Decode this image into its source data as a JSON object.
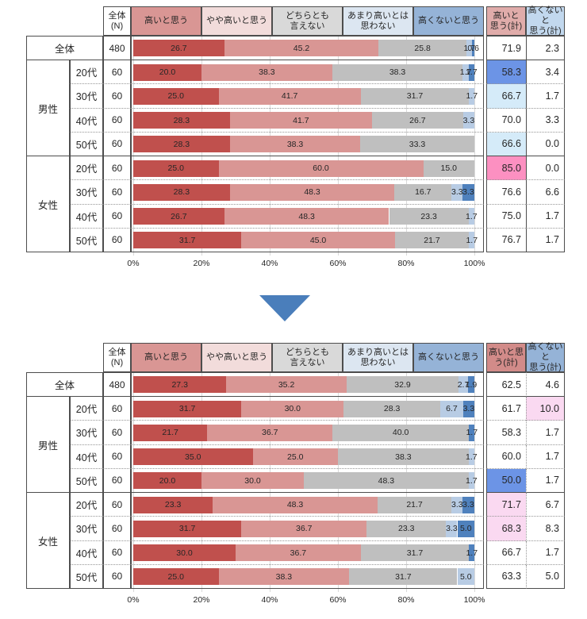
{
  "palette": {
    "series_colors": [
      "#C0504D",
      "#D99694",
      "#BFBFBF",
      "#B8CCE4",
      "#4F81BD"
    ],
    "header_colors": [
      "#D99694",
      "#F2DCDB",
      "#D9D9D9",
      "#DCE6F1",
      "#95B3D7"
    ],
    "highlight": {
      "blue": "#6C94E6",
      "lightblue": "#D5EBF9",
      "pink": "#FC90C1",
      "lightpink": "#FAD9F1"
    },
    "grid_color": "#D9D9D9",
    "border_solid": "#4D4D4D",
    "border_dotted": "#969696",
    "arrow_color": "#4A7EBB"
  },
  "arrow_icon": "down-triangle",
  "chart_data": [
    {
      "type": "bar",
      "orientation": "horizontal-stacked",
      "position": "top",
      "xlim": [
        0,
        100
      ],
      "grid": true,
      "x_ticks": [
        "0%",
        "20%",
        "40%",
        "60%",
        "80%",
        "100%"
      ],
      "n_header_lines": [
        "全体",
        "(N)"
      ],
      "series_names": [
        "高いと思う",
        "やや高いと思う",
        "どちらとも言えない",
        "あまり高いとは思わない",
        "高くないと思う"
      ],
      "series_header_lines": [
        [
          "高いと思う"
        ],
        [
          "やや高いと思う"
        ],
        [
          "どちらとも",
          "言えない"
        ],
        [
          "あまり高いとは",
          "思わない"
        ],
        [
          "高くないと思う"
        ]
      ],
      "summary_header_lines": [
        [
          "高いと",
          "思う(計)"
        ],
        [
          "高くないと",
          "思う(計)"
        ]
      ],
      "summary_header_colors": [
        "#E0ACAA",
        "#C2D8EE"
      ],
      "summary_divider": "solid",
      "groups": [
        {
          "label": "全体",
          "rows": [
            {
              "age": null,
              "n": "480",
              "values": [
                26.7,
                45.2,
                25.8,
                1.7,
                0.6
              ],
              "high_total": "71.9",
              "high_hl": null,
              "low_total": "2.3",
              "low_hl": null
            }
          ]
        },
        {
          "label": "男性",
          "rows": [
            {
              "age": "20代",
              "n": "60",
              "values": [
                20.0,
                38.3,
                38.3,
                1.7,
                1.7
              ],
              "high_total": "58.3",
              "high_hl": "blue",
              "low_total": "3.4",
              "low_hl": null
            },
            {
              "age": "30代",
              "n": "60",
              "values": [
                25.0,
                41.7,
                31.7,
                1.7,
                0.0
              ],
              "high_total": "66.7",
              "high_hl": "lightblue",
              "low_total": "1.7",
              "low_hl": null
            },
            {
              "age": "40代",
              "n": "60",
              "values": [
                28.3,
                41.7,
                26.7,
                3.3,
                0.0
              ],
              "high_total": "70.0",
              "high_hl": null,
              "low_total": "3.3",
              "low_hl": null
            },
            {
              "age": "50代",
              "n": "60",
              "values": [
                28.3,
                38.3,
                33.3,
                0.0,
                0.0
              ],
              "high_total": "66.6",
              "high_hl": "lightblue",
              "low_total": "0.0",
              "low_hl": null
            }
          ]
        },
        {
          "label": "女性",
          "rows": [
            {
              "age": "20代",
              "n": "60",
              "values": [
                25.0,
                60.0,
                15.0,
                0.0,
                0.0
              ],
              "high_total": "85.0",
              "high_hl": "pink",
              "low_total": "0.0",
              "low_hl": null
            },
            {
              "age": "30代",
              "n": "60",
              "values": [
                28.3,
                48.3,
                16.7,
                3.3,
                3.3
              ],
              "high_total": "76.6",
              "high_hl": null,
              "low_total": "6.6",
              "low_hl": null
            },
            {
              "age": "40代",
              "n": "60",
              "values": [
                26.7,
                48.3,
                23.3,
                1.7,
                0.0
              ],
              "high_total": "75.0",
              "high_hl": null,
              "low_total": "1.7",
              "low_hl": null
            },
            {
              "age": "50代",
              "n": "60",
              "values": [
                31.7,
                45.0,
                21.7,
                1.7,
                0.0
              ],
              "high_total": "76.7",
              "high_hl": null,
              "low_total": "1.7",
              "low_hl": null
            }
          ]
        }
      ]
    },
    {
      "type": "bar",
      "orientation": "horizontal-stacked",
      "position": "bottom",
      "xlim": [
        0,
        100
      ],
      "grid": true,
      "x_ticks": [
        "0%",
        "20%",
        "40%",
        "60%",
        "80%",
        "100%"
      ],
      "n_header_lines": [
        "全体",
        "(N)"
      ],
      "series_names": [
        "高いと思う",
        "やや高いと思う",
        "どちらとも言えない",
        "あまり高いとは思わない",
        "高くないと思う"
      ],
      "series_header_lines": [
        [
          "高いと思う"
        ],
        [
          "やや高いと思う"
        ],
        [
          "どちらとも",
          "言えない"
        ],
        [
          "あまり高いとは",
          "思わない"
        ],
        [
          "高くないと思う"
        ]
      ],
      "summary_header_lines": [
        [
          "高いと思",
          "う(計)"
        ],
        [
          "高くないと",
          "思う(計)"
        ]
      ],
      "summary_header_colors": [
        "#D28B89",
        "#95B3D7"
      ],
      "summary_divider": "dotted",
      "groups": [
        {
          "label": "全体",
          "rows": [
            {
              "age": null,
              "n": "480",
              "values": [
                27.3,
                35.2,
                32.9,
                2.7,
                1.9
              ],
              "high_total": "62.5",
              "high_hl": null,
              "low_total": "4.6",
              "low_hl": null
            }
          ]
        },
        {
          "label": "男性",
          "rows": [
            {
              "age": "20代",
              "n": "60",
              "values": [
                31.7,
                30.0,
                28.3,
                6.7,
                3.3
              ],
              "high_total": "61.7",
              "high_hl": null,
              "low_total": "10.0",
              "low_hl": "lightpink"
            },
            {
              "age": "30代",
              "n": "60",
              "values": [
                21.7,
                36.7,
                40.0,
                0.0,
                1.7
              ],
              "high_total": "58.3",
              "high_hl": null,
              "low_total": "1.7",
              "low_hl": null
            },
            {
              "age": "40代",
              "n": "60",
              "values": [
                35.0,
                25.0,
                38.3,
                1.7,
                0.0
              ],
              "high_total": "60.0",
              "high_hl": null,
              "low_total": "1.7",
              "low_hl": null
            },
            {
              "age": "50代",
              "n": "60",
              "values": [
                20.0,
                30.0,
                48.3,
                1.7,
                0.0
              ],
              "high_total": "50.0",
              "high_hl": "blue",
              "low_total": "1.7",
              "low_hl": null
            }
          ]
        },
        {
          "label": "女性",
          "rows": [
            {
              "age": "20代",
              "n": "60",
              "values": [
                23.3,
                48.3,
                21.7,
                3.3,
                3.3
              ],
              "high_total": "71.7",
              "high_hl": "lightpink",
              "low_total": "6.7",
              "low_hl": null
            },
            {
              "age": "30代",
              "n": "60",
              "values": [
                31.7,
                36.7,
                23.3,
                3.3,
                5.0
              ],
              "high_total": "68.3",
              "high_hl": "lightpink",
              "low_total": "8.3",
              "low_hl": null
            },
            {
              "age": "40代",
              "n": "60",
              "values": [
                30.0,
                36.7,
                31.7,
                0.0,
                1.7
              ],
              "high_total": "66.7",
              "high_hl": null,
              "low_total": "1.7",
              "low_hl": null
            },
            {
              "age": "50代",
              "n": "60",
              "values": [
                25.0,
                38.3,
                31.7,
                5.0,
                0.0
              ],
              "high_total": "63.3",
              "high_hl": null,
              "low_total": "5.0",
              "low_hl": null
            }
          ]
        }
      ]
    }
  ]
}
